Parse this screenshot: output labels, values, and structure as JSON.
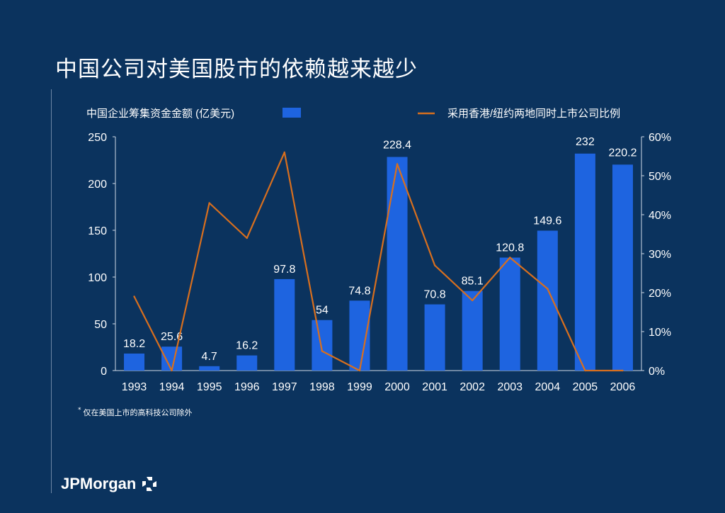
{
  "slide": {
    "title": "中国公司对美国股市的依赖越来越少",
    "footnote_marker": "*",
    "footnote": "仅在美国上市的高科技公司除外",
    "logo_text": "JPMorgan"
  },
  "colors": {
    "background": "#0b335e",
    "bar": "#1e64e0",
    "line": "#d86f1e",
    "text": "#ffffff"
  },
  "chart_data": {
    "type": "bar",
    "categories": [
      "1993",
      "1994",
      "1995",
      "1996",
      "1997",
      "1998",
      "1999",
      "2000",
      "2001",
      "2002",
      "2003",
      "2004",
      "2005",
      "2006"
    ],
    "series": [
      {
        "name": "中国企业筹集资金金额 (亿美元)",
        "type": "bar",
        "axis": "left",
        "values": [
          18.2,
          25.6,
          4.7,
          16.2,
          97.8,
          54,
          74.8,
          228.4,
          70.8,
          85.1,
          120.8,
          149.6,
          232,
          220.2
        ],
        "labels": [
          "18.2",
          "25.6",
          "4.7",
          "16.2",
          "97.8",
          "54",
          "74.8",
          "228.4",
          "70.8",
          "85.1",
          "120.8",
          "149.6",
          "232",
          "220.2"
        ]
      },
      {
        "name": "采用香港/纽约两地同时上市公司比例",
        "type": "line",
        "axis": "right",
        "values": [
          19,
          0,
          43,
          34,
          56,
          5,
          0,
          53,
          27,
          18,
          29,
          21,
          0,
          0
        ]
      }
    ],
    "y_left": {
      "ylim": [
        0,
        250
      ],
      "ticks": [
        "0",
        "50",
        "100",
        "150",
        "200",
        "250"
      ]
    },
    "y_right": {
      "ylim": [
        0,
        60
      ],
      "ticks": [
        "0%",
        "10%",
        "20%",
        "30%",
        "40%",
        "50%",
        "60%"
      ]
    },
    "grid": false,
    "legend": "top"
  }
}
